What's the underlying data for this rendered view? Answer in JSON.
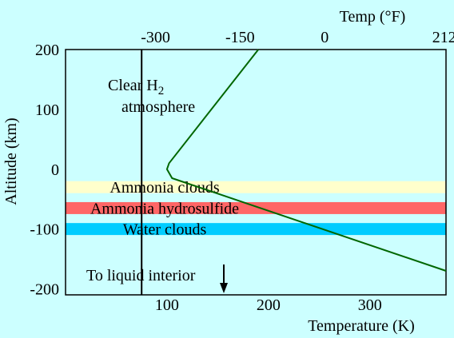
{
  "chart_data": {
    "type": "line",
    "title": "",
    "top_axis": {
      "label": "Temp (°F)",
      "ticks": [
        {
          "label": "-300",
          "value_k": 88.7
        },
        {
          "label": "-150",
          "value_k": 172.0
        },
        {
          "label": "0",
          "value_k": 255.4
        },
        {
          "label": "212",
          "value_k": 373.2
        }
      ]
    },
    "xlabel": "Temperature (K)",
    "xlim": [
      0,
      375
    ],
    "xticks": [
      "100",
      "200",
      "300"
    ],
    "xtick_values": [
      100,
      200,
      300
    ],
    "ylabel": "Altitude (km)",
    "ylim": [
      -210,
      200
    ],
    "yticks": [
      "200",
      "100",
      "0",
      "-100",
      "-200"
    ],
    "ytick_values": [
      200,
      100,
      0,
      -100,
      -200
    ],
    "series": [
      {
        "color": "#006600",
        "x": [
          190,
          102,
          100,
          105,
          375
        ],
        "y": [
          200,
          10,
          0,
          -15,
          -170
        ]
      }
    ],
    "divider_x": 75,
    "layers": [
      {
        "label": "Ammonia clouds",
        "top": -20,
        "bottom": -40,
        "color": "#ffffcc"
      },
      {
        "label": "Ammonia hydrosulfide",
        "top": -55,
        "bottom": -75,
        "color": "#ff6666"
      },
      {
        "label": "Water clouds",
        "top": -90,
        "bottom": -110,
        "color": "#00ccff"
      }
    ],
    "annotations": {
      "clear_line1": "Clear H",
      "clear_sub": "2",
      "clear_line2": "atmosphere",
      "liquid": "To liquid interior"
    }
  }
}
